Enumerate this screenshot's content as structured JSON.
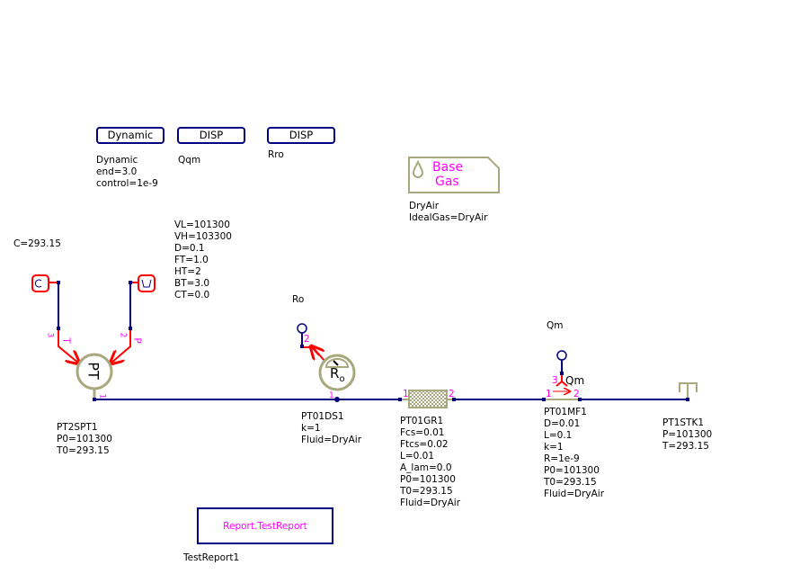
{
  "colors": {
    "wire": "#000080",
    "signal": "#ff0000",
    "component": "#a8a87e",
    "pin": "#ff00ff"
  },
  "buttons": [
    {
      "label": "Dynamic"
    },
    {
      "label": "DISP"
    },
    {
      "label": "DISP"
    }
  ],
  "dynamic": {
    "lines": [
      "Dynamic",
      "end=3.0",
      "control=1e-9"
    ]
  },
  "disp1": {
    "label": "Qqm"
  },
  "disp2": {
    "label": "Rro"
  },
  "basegas": {
    "title1": "Base",
    "title2": "Gas",
    "icon": "drop-icon",
    "lines": [
      "DryAir",
      "IdealGas=DryAir"
    ]
  },
  "const_c": {
    "label": "C=293.15",
    "symbol": "C"
  },
  "pulse": {
    "lines": [
      "VL=101300",
      "VH=103300",
      "D=0.1",
      "FT=1.0",
      "HT=2",
      "BT=3.0",
      "CT=0.0"
    ]
  },
  "pt2spt": {
    "symbol": "PT",
    "pin1": "1",
    "pin2": "2",
    "pin3": "3",
    "pinT": "T",
    "pinP": "P",
    "lines": [
      "PT2SPT1",
      "P0=101300",
      "T0=293.15"
    ]
  },
  "ds": {
    "top": "Ro",
    "symbol": "R",
    "sub": "o",
    "pin1": "1",
    "pin2": "2",
    "lines": [
      "PT01DS1",
      "k=1",
      "Fluid=DryAir"
    ]
  },
  "gr": {
    "pin1": "1",
    "pin2": "2",
    "lines": [
      "PT01GR1",
      "Fcs=0.01",
      "Ftcs=0.02",
      "L=0.01",
      "A_lam=0.0",
      "P0=101300",
      "T0=293.15",
      "Fluid=DryAir"
    ]
  },
  "mf": {
    "top": "Qm",
    "qm": "Qm",
    "pin1": "1",
    "pin2": "2",
    "pin3": "3",
    "lines": [
      "PT01MF1",
      "D=0.01",
      "L=0.1",
      "k=1",
      "R=1e-9",
      "P0=101300",
      "T0=293.15",
      "Fluid=DryAir"
    ]
  },
  "stk": {
    "lines": [
      "PT1STK1",
      "P=101300",
      "T=293.15"
    ]
  },
  "report": {
    "label": "Report.TestReport",
    "name": "TestReport1"
  }
}
